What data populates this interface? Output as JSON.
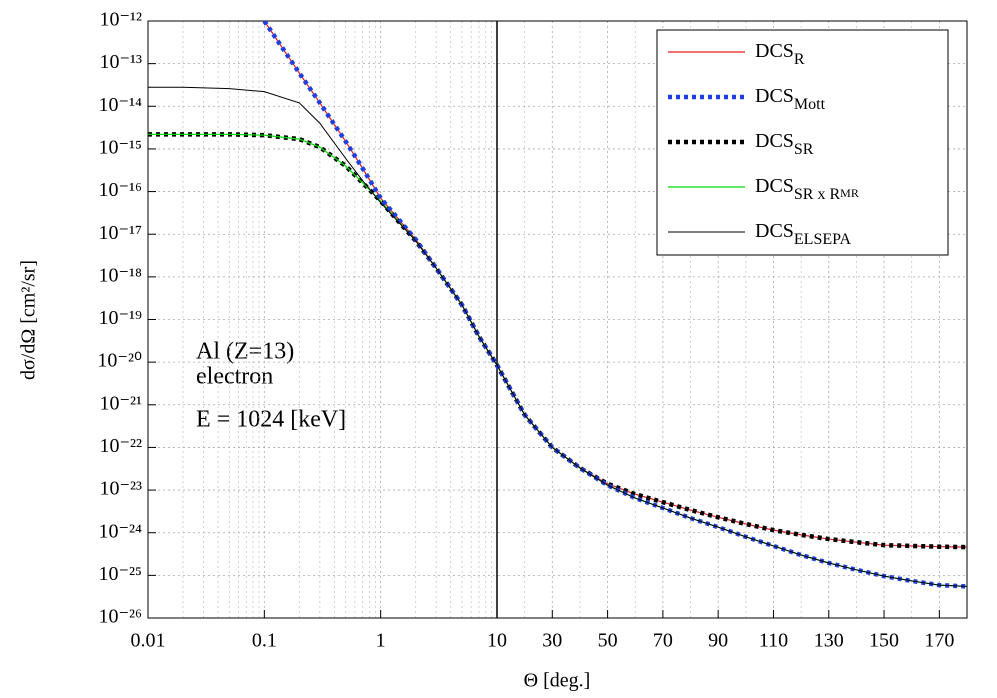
{
  "chart_data": {
    "type": "line",
    "x_label": "Θ [deg.]",
    "y_label": "dσ/dΩ [cm²/sr]",
    "annotations": [
      "Al (Z=13)",
      "electron",
      "E = 1024 [keV]"
    ],
    "xscale": "log-linear",
    "xbreak": 10,
    "yscale": "log",
    "grid": true,
    "legend": "upper right",
    "xlim": [
      0.01,
      180
    ],
    "xticks": [
      0.01,
      0.1,
      1,
      10,
      30,
      50,
      70,
      90,
      110,
      130,
      150,
      170
    ],
    "ylim": [
      1e-26,
      1e-12
    ],
    "yticks": [
      {
        "value": 1e-12,
        "label": "10⁻¹²"
      },
      {
        "value": 1e-13,
        "label": "10⁻¹³"
      },
      {
        "value": 1e-14,
        "label": "10⁻¹⁴"
      },
      {
        "value": 1e-15,
        "label": "10⁻¹⁵"
      },
      {
        "value": 1e-16,
        "label": "10⁻¹⁶"
      },
      {
        "value": 1e-17,
        "label": "10⁻¹⁷"
      },
      {
        "value": 1e-18,
        "label": "10⁻¹⁸"
      },
      {
        "value": 1e-19,
        "label": "10⁻¹⁹"
      },
      {
        "value": 1e-20,
        "label": "10⁻²⁰"
      },
      {
        "value": 1e-21,
        "label": "10⁻²¹"
      },
      {
        "value": 1e-22,
        "label": "10⁻²²"
      },
      {
        "value": 1e-23,
        "label": "10⁻²³"
      },
      {
        "value": 1e-24,
        "label": "10⁻²⁴"
      },
      {
        "value": 1e-25,
        "label": "10⁻²⁵"
      },
      {
        "value": 1e-26,
        "label": "10⁻²⁶"
      }
    ],
    "x": [
      0.01,
      0.02,
      0.05,
      0.1,
      0.2,
      0.3,
      0.5,
      0.7,
      1,
      2,
      3,
      5,
      7,
      10,
      20,
      30,
      40,
      50,
      60,
      70,
      80,
      90,
      100,
      110,
      120,
      130,
      140,
      150,
      160,
      170,
      180
    ],
    "series": [
      {
        "name": "DCS",
        "name_sub": "R",
        "color": "#e41a1c",
        "style": "solid",
        "values": [
          null,
          null,
          null,
          1e-12,
          6e-14,
          1.2e-14,
          1.5e-15,
          3.5e-16,
          7e-17,
          7.5e-18,
          1.6e-18,
          2.2e-19,
          4e-20,
          8.5e-21,
          5.8e-22,
          1e-22,
          3.3e-23,
          1.4e-23,
          8e-24,
          5.2e-24,
          3.4e-24,
          2.3e-24,
          1.6e-24,
          1.15e-24,
          8.9e-25,
          7.1e-25,
          6e-25,
          5.1e-25,
          4.9e-25,
          4.7e-25,
          4.6e-25
        ]
      },
      {
        "name": "DCS",
        "name_sub": "Mott",
        "color": "#1f3fe0",
        "style": "dotted",
        "values": [
          null,
          null,
          null,
          1e-12,
          6e-14,
          1.2e-14,
          1.5e-15,
          3.5e-16,
          7e-17,
          7.5e-18,
          1.6e-18,
          2.2e-19,
          4e-20,
          8.5e-21,
          5.8e-22,
          1e-22,
          3.3e-23,
          1.3e-23,
          6.5e-24,
          3.8e-24,
          2.2e-24,
          1.35e-24,
          8e-25,
          4.9e-25,
          3e-25,
          1.95e-25,
          1.35e-25,
          9.6e-26,
          7.4e-26,
          5.9e-26,
          5.5e-26
        ]
      },
      {
        "name": "DCS",
        "name_sub": "SR",
        "color": "#000000",
        "style": "dotted",
        "values": [
          2.2e-15,
          2.2e-15,
          2.2e-15,
          2.1e-15,
          1.7e-15,
          1.1e-15,
          4e-16,
          1.6e-16,
          6e-17,
          7e-18,
          1.6e-18,
          2.2e-19,
          4e-20,
          8.5e-21,
          5.8e-22,
          1e-22,
          3.3e-23,
          1.4e-23,
          8e-24,
          5.2e-24,
          3.4e-24,
          2.3e-24,
          1.6e-24,
          1.15e-24,
          8.9e-25,
          7.1e-25,
          6e-25,
          5.1e-25,
          4.9e-25,
          4.7e-25,
          4.6e-25
        ]
      },
      {
        "name": "DCS",
        "name_sub": "SR x R",
        "name_sub2": "MR",
        "color": "#00dd00",
        "style": "solid",
        "values": [
          2.2e-15,
          2.2e-15,
          2.2e-15,
          2.1e-15,
          1.7e-15,
          1.1e-15,
          4e-16,
          1.6e-16,
          6e-17,
          7e-18,
          1.6e-18,
          2.2e-19,
          4e-20,
          8.5e-21,
          5.8e-22,
          1e-22,
          3.3e-23,
          1.3e-23,
          6.5e-24,
          3.8e-24,
          2.2e-24,
          1.35e-24,
          8e-25,
          4.9e-25,
          3e-25,
          1.95e-25,
          1.35e-25,
          9.6e-26,
          7.4e-26,
          5.9e-26,
          5.5e-26
        ]
      },
      {
        "name": "DCS",
        "name_sub": "ELSEPA",
        "color": "#000000",
        "style": "solid",
        "values": [
          2.8e-14,
          2.8e-14,
          2.6e-14,
          2.2e-14,
          1.2e-14,
          4e-15,
          6e-16,
          1.8e-16,
          5.5e-17,
          7e-18,
          1.6e-18,
          2.2e-19,
          4e-20,
          8.5e-21,
          5.8e-22,
          1e-22,
          3.3e-23,
          1.3e-23,
          6.5e-24,
          3.8e-24,
          2.2e-24,
          1.35e-24,
          8e-25,
          4.9e-25,
          3e-25,
          1.95e-25,
          1.35e-25,
          9.6e-26,
          7.4e-26,
          5.9e-26,
          5.5e-26
        ]
      }
    ]
  }
}
